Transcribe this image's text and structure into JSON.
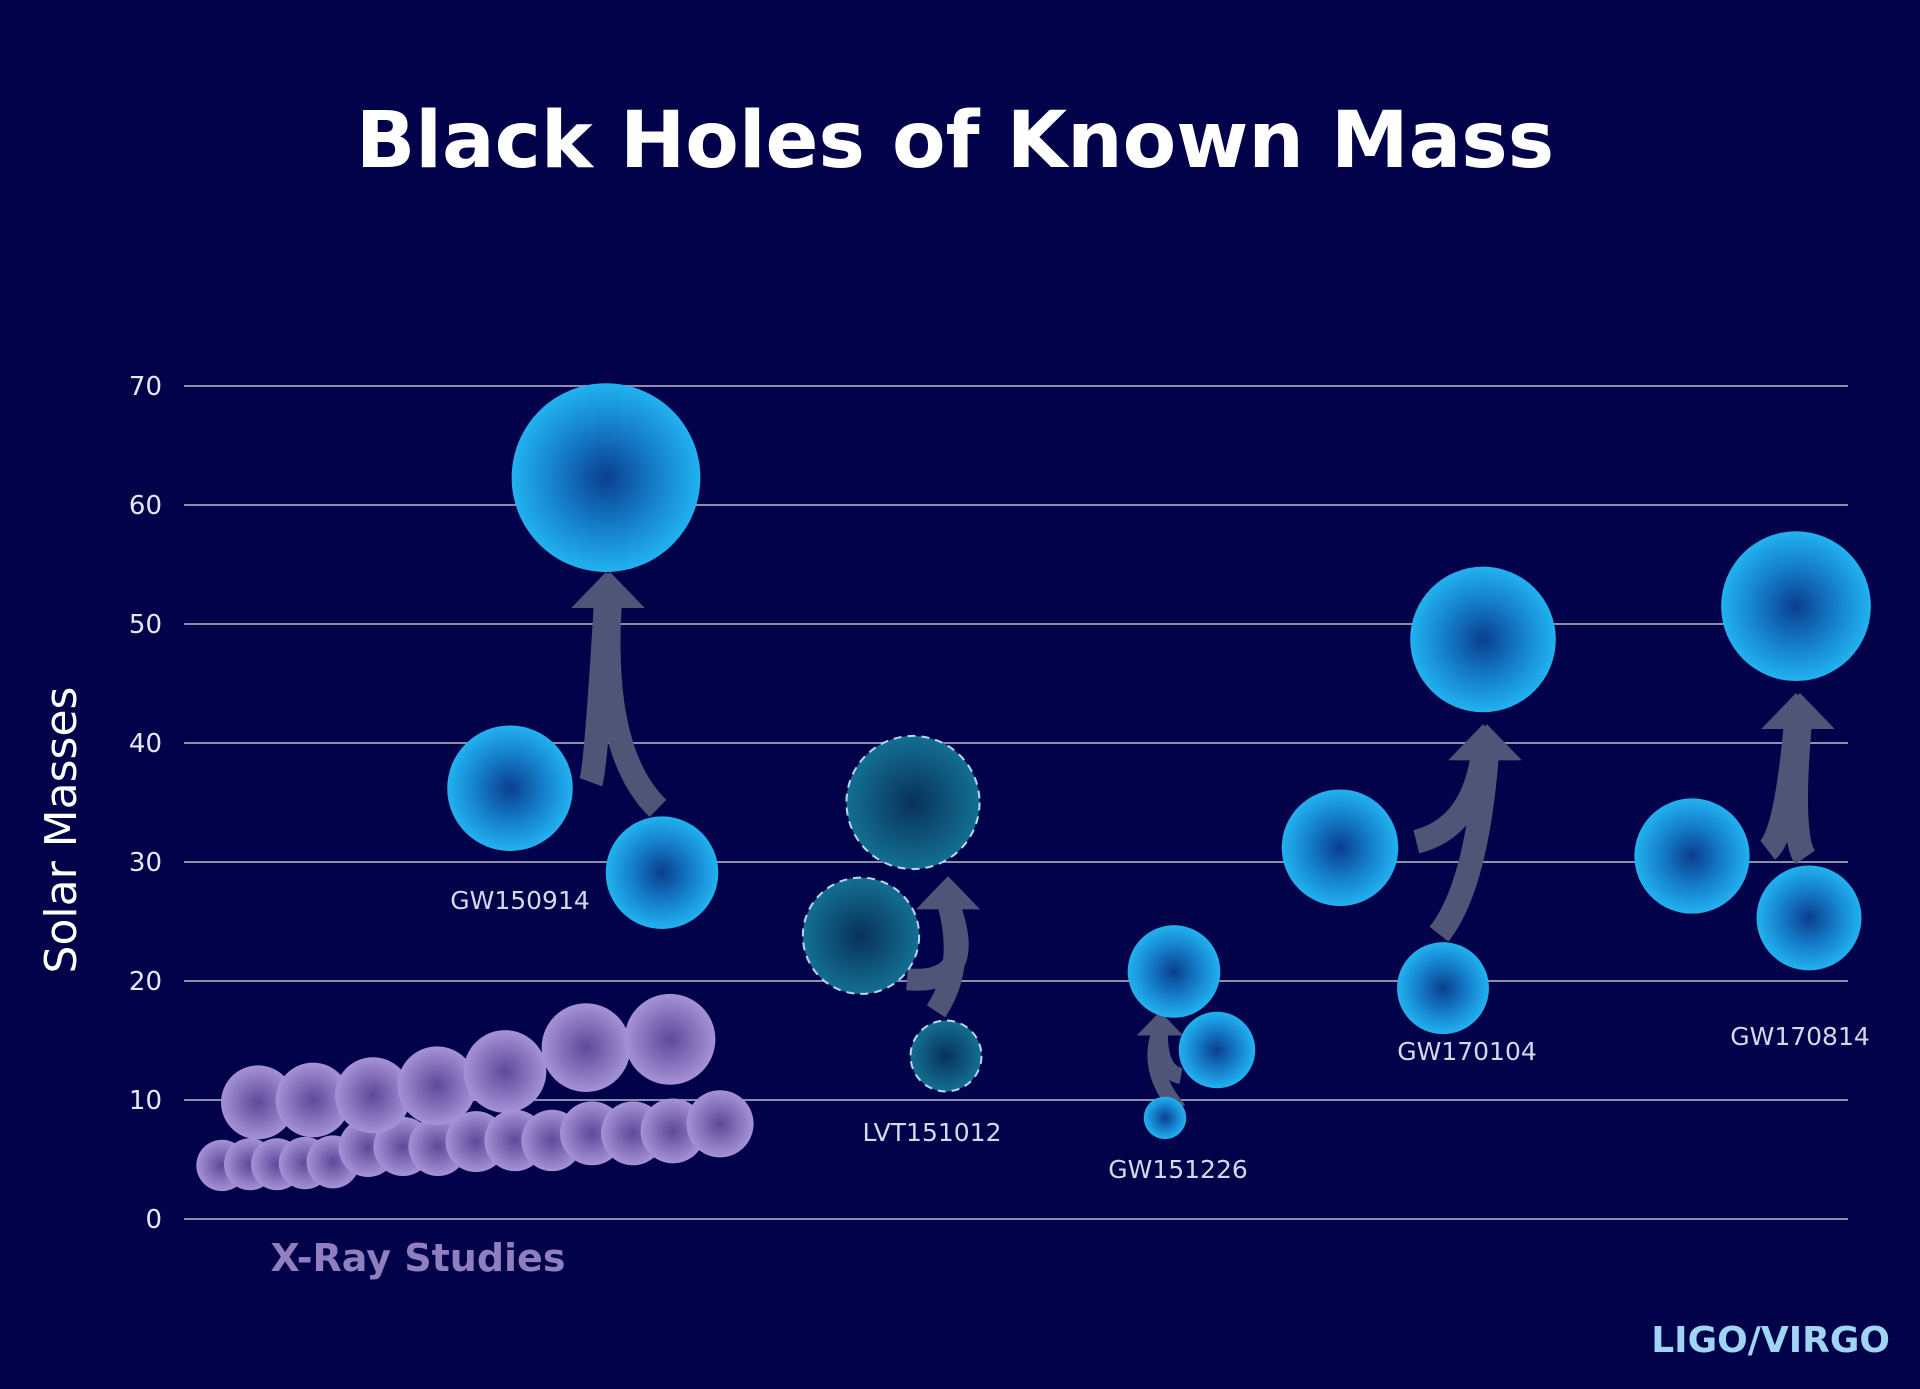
{
  "colors": {
    "background": "#02024a",
    "ligo_virgo_blue": "#1fa9ea",
    "candidate_teal": "#0f6f90",
    "xray_purple": "#9a86c8",
    "merger_arrow": "#4e5577"
  },
  "chart_data": {
    "type": "scatter",
    "title": "Black Holes of Known Mass",
    "ylabel": "Solar Masses",
    "ylim": [
      0,
      70
    ],
    "yticks": [
      0,
      10,
      20,
      30,
      40,
      50,
      60,
      70
    ],
    "grid": true,
    "credit": "LIGO/VIRGO",
    "xray_label": "X-Ray Studies",
    "xray_studies": [
      4.5,
      4.6,
      4.6,
      4.7,
      4.8,
      6.0,
      6.1,
      6.1,
      6.5,
      6.6,
      6.6,
      7.2,
      7.2,
      7.4,
      8.0,
      9.8,
      10.0,
      10.4,
      11.2,
      12.4,
      14.4,
      15.1
    ],
    "events": [
      {
        "name": "GW150914",
        "primary": 36.2,
        "secondary": 29.1,
        "final": 62.3,
        "candidate": false
      },
      {
        "name": "LVT151012",
        "primary": 35,
        "secondary": 13.7,
        "final": 23.0,
        "candidate": true
      },
      {
        "name": "GW151226",
        "primary": 14.2,
        "secondary": 7.5,
        "final": 20.8,
        "candidate": false
      },
      {
        "name": "GW170104",
        "primary": 31.2,
        "secondary": 19.4,
        "final": 48.7,
        "candidate": false
      },
      {
        "name": "GW170814",
        "primary": 30.5,
        "secondary": 25.3,
        "final": 51.5,
        "candidate": false
      }
    ]
  }
}
